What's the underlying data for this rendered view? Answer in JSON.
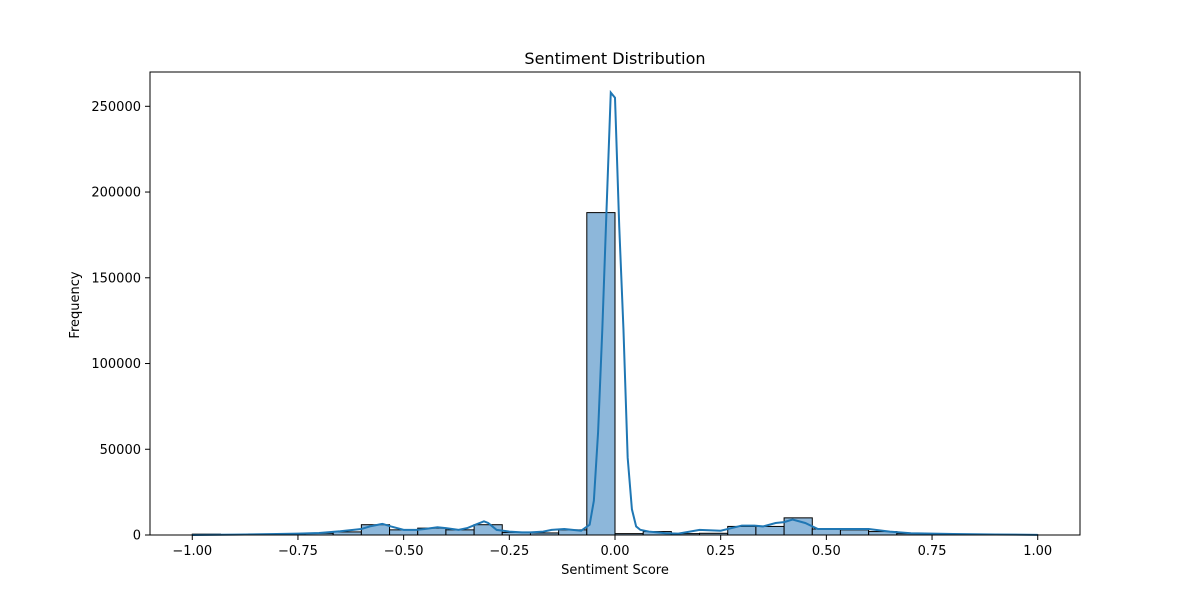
{
  "chart_data": {
    "type": "bar",
    "title": "Sentiment Distribution",
    "xlabel": "Sentiment Score",
    "ylabel": "Frequency",
    "xlim": [
      -1.1,
      1.1
    ],
    "ylim": [
      0,
      270000
    ],
    "xticks": [
      -1.0,
      -0.75,
      -0.5,
      -0.25,
      0.0,
      0.25,
      0.5,
      0.75,
      1.0
    ],
    "xtick_labels": [
      "−1.00",
      "−0.75",
      "−0.50",
      "−0.25",
      "0.00",
      "0.25",
      "0.50",
      "0.75",
      "1.00"
    ],
    "yticks": [
      0,
      50000,
      100000,
      150000,
      200000,
      250000
    ],
    "ytick_labels": [
      "0",
      "50000",
      "100000",
      "150000",
      "200000",
      "250000"
    ],
    "grid": false,
    "legend": "none",
    "bar_color": "#8db7da",
    "edge_color": "#000000",
    "kde_color": "#1f77b4",
    "bins": [
      {
        "start": -1.0,
        "end": -0.9333,
        "count": 500
      },
      {
        "start": -0.9333,
        "end": -0.8667,
        "count": 300
      },
      {
        "start": -0.8667,
        "end": -0.8,
        "count": 600
      },
      {
        "start": -0.8,
        "end": -0.7333,
        "count": 800
      },
      {
        "start": -0.7333,
        "end": -0.6667,
        "count": 1000
      },
      {
        "start": -0.6667,
        "end": -0.6,
        "count": 1800
      },
      {
        "start": -0.6,
        "end": -0.5333,
        "count": 6000
      },
      {
        "start": -0.5333,
        "end": -0.4667,
        "count": 3000
      },
      {
        "start": -0.4667,
        "end": -0.4,
        "count": 4000
      },
      {
        "start": -0.4,
        "end": -0.3333,
        "count": 3000
      },
      {
        "start": -0.3333,
        "end": -0.2667,
        "count": 6000
      },
      {
        "start": -0.2667,
        "end": -0.2,
        "count": 1500
      },
      {
        "start": -0.2,
        "end": -0.1333,
        "count": 1200
      },
      {
        "start": -0.1333,
        "end": -0.0667,
        "count": 3000
      },
      {
        "start": -0.0667,
        "end": 0.0,
        "count": 188000
      },
      {
        "start": 0.0,
        "end": 0.0667,
        "count": 800
      },
      {
        "start": 0.0667,
        "end": 0.1333,
        "count": 2000
      },
      {
        "start": 0.1333,
        "end": 0.2,
        "count": 800
      },
      {
        "start": 0.2,
        "end": 0.2667,
        "count": 1000
      },
      {
        "start": 0.2667,
        "end": 0.3333,
        "count": 5000
      },
      {
        "start": 0.3333,
        "end": 0.4,
        "count": 5000
      },
      {
        "start": 0.4,
        "end": 0.4667,
        "count": 10000
      },
      {
        "start": 0.4667,
        "end": 0.5333,
        "count": 3500
      },
      {
        "start": 0.5333,
        "end": 0.6,
        "count": 3000
      },
      {
        "start": 0.6,
        "end": 0.6667,
        "count": 2000
      },
      {
        "start": 0.6667,
        "end": 0.7333,
        "count": 800
      },
      {
        "start": 0.7333,
        "end": 0.8,
        "count": 600
      },
      {
        "start": 0.8,
        "end": 0.8667,
        "count": 400
      },
      {
        "start": 0.8667,
        "end": 0.9333,
        "count": 300
      },
      {
        "start": 0.9333,
        "end": 1.0,
        "count": 200
      }
    ],
    "kde": {
      "x": [
        -1.0,
        -0.9,
        -0.8,
        -0.75,
        -0.7,
        -0.65,
        -0.6,
        -0.58,
        -0.55,
        -0.53,
        -0.5,
        -0.47,
        -0.45,
        -0.42,
        -0.4,
        -0.37,
        -0.35,
        -0.33,
        -0.31,
        -0.3,
        -0.28,
        -0.25,
        -0.22,
        -0.2,
        -0.17,
        -0.15,
        -0.12,
        -0.1,
        -0.08,
        -0.06,
        -0.05,
        -0.04,
        -0.03,
        -0.02,
        -0.01,
        0.0,
        0.01,
        0.02,
        0.03,
        0.04,
        0.05,
        0.06,
        0.08,
        0.1,
        0.12,
        0.15,
        0.2,
        0.25,
        0.3,
        0.33,
        0.35,
        0.38,
        0.4,
        0.42,
        0.45,
        0.48,
        0.5,
        0.55,
        0.6,
        0.65,
        0.7,
        0.75,
        0.8,
        0.9,
        1.0
      ],
      "y": [
        0,
        200,
        600,
        800,
        1200,
        2200,
        3500,
        5000,
        6500,
        5000,
        3000,
        3000,
        3500,
        4500,
        4000,
        3000,
        4000,
        6000,
        8000,
        7000,
        3000,
        2000,
        1500,
        1500,
        2000,
        3000,
        3500,
        3000,
        2500,
        6000,
        20000,
        60000,
        120000,
        190000,
        258000,
        255000,
        180000,
        120000,
        45000,
        15000,
        5000,
        3000,
        2000,
        1500,
        1000,
        800,
        3000,
        2500,
        5500,
        5500,
        5000,
        7000,
        7500,
        9000,
        7000,
        3500,
        3500,
        3500,
        3500,
        2000,
        1000,
        800,
        600,
        300,
        100
      ]
    }
  }
}
